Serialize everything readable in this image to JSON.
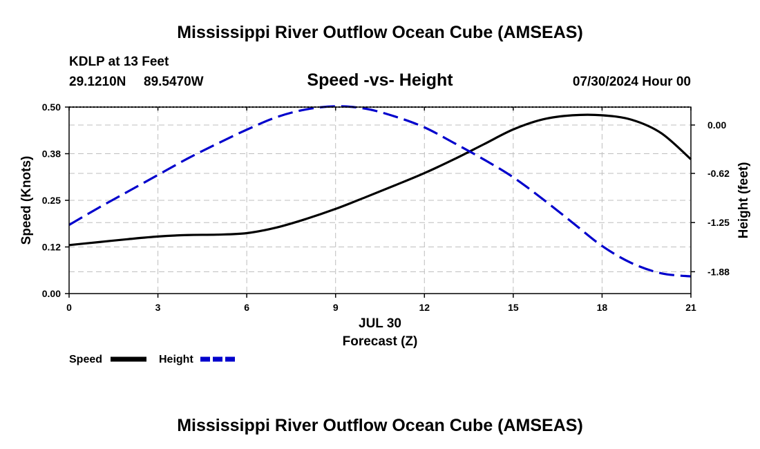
{
  "header": {
    "title": "Mississippi River Outflow Ocean Cube (AMSEAS)",
    "station": "KDLP at 13 Feet",
    "lat": "29.1210N",
    "lon": "89.5470W",
    "date": "07/30/2024 Hour 00",
    "footer_title": "Mississippi River Outflow Ocean Cube (AMSEAS)"
  },
  "chart_data": {
    "type": "line",
    "title": "Speed -vs- Height",
    "xlabel_date": "JUL 30",
    "xlabel": "Forecast (Z)",
    "ylabel_left": "Speed (Knots)",
    "ylabel_right": "Height (feet)",
    "xlim": [
      0,
      21
    ],
    "x_ticks": [
      0,
      3,
      6,
      9,
      12,
      15,
      18,
      21
    ],
    "x_tick_labels": [
      "0",
      "3",
      "6",
      "9",
      "12",
      "15",
      "18",
      "21"
    ],
    "ylim_left": [
      0,
      0.5
    ],
    "y_left_ticks": [
      0,
      0.125,
      0.25,
      0.375,
      0.5
    ],
    "y_left_tick_labels": [
      "0.00",
      "0.12",
      "0.25",
      "0.38",
      "0.50"
    ],
    "ylim_right": [
      -2.16,
      0.23
    ],
    "y_right_ticks": [
      0.0,
      -0.62,
      -1.25,
      -1.88
    ],
    "y_right_tick_labels": [
      "0.00",
      "-0.62",
      "-1.25",
      "-1.88"
    ],
    "series": [
      {
        "name": "Speed",
        "axis": "left",
        "style": "solid",
        "color": "#000000",
        "x": [
          0,
          1,
          2,
          3,
          4,
          5,
          6,
          7,
          8,
          9,
          10,
          11,
          12,
          13,
          14,
          15,
          16,
          17,
          18,
          19,
          20,
          21
        ],
        "values": [
          0.13,
          0.138,
          0.146,
          0.153,
          0.157,
          0.158,
          0.162,
          0.177,
          0.2,
          0.227,
          0.258,
          0.29,
          0.323,
          0.36,
          0.4,
          0.44,
          0.467,
          0.478,
          0.478,
          0.466,
          0.43,
          0.36
        ]
      },
      {
        "name": "Height",
        "axis": "right",
        "style": "dashed",
        "color": "#0000cc",
        "x": [
          0,
          1,
          2,
          3,
          4,
          5,
          6,
          7,
          8,
          9,
          10,
          11,
          12,
          13,
          14,
          15,
          16,
          17,
          18,
          19,
          20,
          21
        ],
        "values": [
          -1.28,
          -1.06,
          -0.85,
          -0.64,
          -0.43,
          -0.24,
          -0.06,
          0.1,
          0.2,
          0.24,
          0.21,
          0.11,
          -0.03,
          -0.23,
          -0.44,
          -0.67,
          -0.95,
          -1.25,
          -1.55,
          -1.77,
          -1.9,
          -1.94
        ]
      }
    ],
    "legend": [
      {
        "label": "Speed",
        "color": "#000000",
        "style": "solid"
      },
      {
        "label": "Height",
        "color": "#0000cc",
        "style": "dashed"
      }
    ],
    "grid": true
  }
}
